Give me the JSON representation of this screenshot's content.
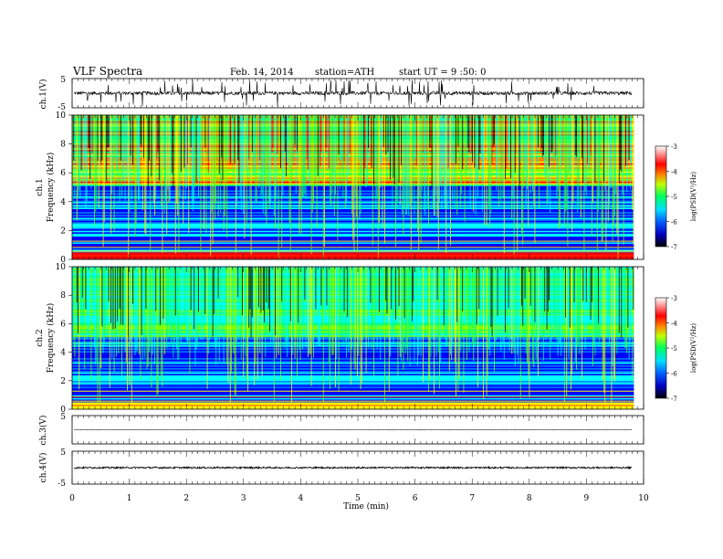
{
  "header": {
    "title": "VLF  Spectra",
    "date": "Feb. 14,  2014",
    "station": "station=ATH",
    "start": "start  UT  =   9  :50: 0"
  },
  "chart_data": [
    {
      "type": "line",
      "name": "ch1-waveform",
      "ylabel": "ch.1(V)",
      "ylim": [
        -5,
        5
      ],
      "yticks": [
        "5",
        "-5"
      ],
      "xlim": [
        0,
        10
      ],
      "data_end_min": 9.8,
      "baseline_v": 0.0,
      "noise_amplitude_v": 0.6,
      "spike_amplitude_v": 4.5
    },
    {
      "type": "heatmap",
      "name": "ch1-spectrogram",
      "ylabel_top": "ch.1",
      "ylabel": "Frequency  (kHz)",
      "ylim": [
        0,
        10
      ],
      "yticks": [
        "0",
        "2",
        "4",
        "6",
        "8",
        "10"
      ],
      "xlim": [
        0,
        10
      ],
      "colorbar_label": "log(PSD(V²/Hz)",
      "colorbar_range": [
        -7,
        -3
      ],
      "colorbar_ticks": [
        "-3",
        "-4",
        "-5",
        "-6",
        "-7"
      ]
    },
    {
      "type": "heatmap",
      "name": "ch2-spectrogram",
      "ylabel_top": "ch.2",
      "ylabel": "Frequency  (kHz)",
      "ylim": [
        0,
        10
      ],
      "yticks": [
        "0",
        "2",
        "4",
        "6",
        "8",
        "10"
      ],
      "xlim": [
        0,
        10
      ],
      "colorbar_label": "log(PSD(V²/Hz)",
      "colorbar_range": [
        -7,
        -3
      ],
      "colorbar_ticks": [
        "-3",
        "-4",
        "-5",
        "-6",
        "-7"
      ]
    },
    {
      "type": "line",
      "name": "ch3-waveform",
      "ylabel": "ch.3(V)",
      "ylim": [
        -5,
        5
      ],
      "yticks": [
        "5"
      ],
      "xlim": [
        0,
        10
      ],
      "data_end_min": 9.8,
      "baseline_v": 0.0,
      "noise_amplitude_v": 0.02
    },
    {
      "type": "line",
      "name": "ch4-waveform",
      "ylabel": "ch.4(V)",
      "ylim": [
        -5,
        5
      ],
      "yticks": [
        "5",
        "-5"
      ],
      "xlim": [
        0,
        10
      ],
      "data_end_min": 9.8,
      "baseline_v": 0.0,
      "noise_amplitude_v": 0.25
    }
  ],
  "xaxis": {
    "label": "Time  (min)",
    "range": [
      0,
      10
    ],
    "ticks": [
      "0",
      "1",
      "2",
      "3",
      "4",
      "5",
      "6",
      "7",
      "8",
      "9",
      "10"
    ]
  },
  "colors": {
    "colormap": [
      "#000000",
      "#0000a0",
      "#0000ff",
      "#0080ff",
      "#00ffff",
      "#00ff80",
      "#80ff00",
      "#ffff00",
      "#ff8000",
      "#ff0000",
      "#ff8080",
      "#ffffff"
    ]
  }
}
